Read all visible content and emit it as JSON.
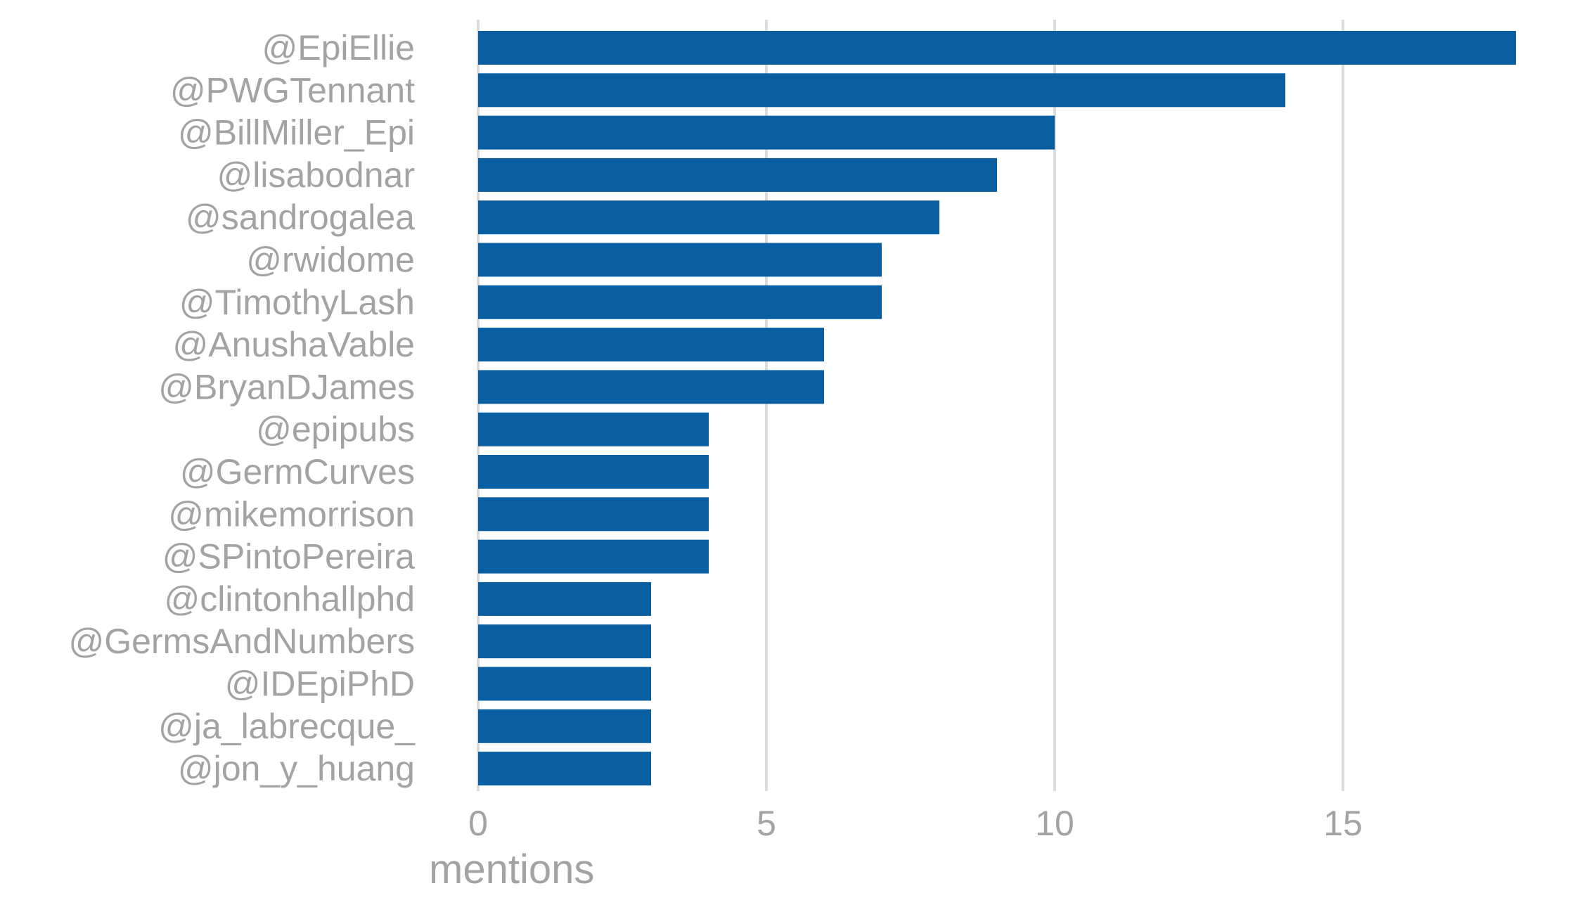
{
  "chart_data": {
    "type": "bar",
    "orientation": "horizontal",
    "categories": [
      "@EpiEllie",
      "@PWGTennant",
      "@BillMiller_Epi",
      "@lisabodnar",
      "@sandrogalea",
      "@rwidome",
      "@TimothyLash",
      "@AnushaVable",
      "@BryanDJames",
      "@epipubs",
      "@GermCurves",
      "@mikemorrison",
      "@SPintoPereira",
      "@clintonhallphd",
      "@GermsAndNumbers",
      "@IDEpiPhD",
      "@ja_labrecque_",
      "@jon_y_huang"
    ],
    "values": [
      18,
      14,
      10,
      9,
      8,
      7,
      7,
      6,
      6,
      4,
      4,
      4,
      4,
      3,
      3,
      3,
      3,
      3
    ],
    "xlabel": "mentions",
    "ylabel": "",
    "xlim": [
      0,
      18.5
    ],
    "xticks": [
      0,
      5,
      10,
      15
    ],
    "grid": "vertical-major",
    "legend": "none",
    "colors": {
      "bar": "#0a5fa3",
      "grid": "#dcdcdc",
      "text": "#a3a3a3"
    }
  }
}
